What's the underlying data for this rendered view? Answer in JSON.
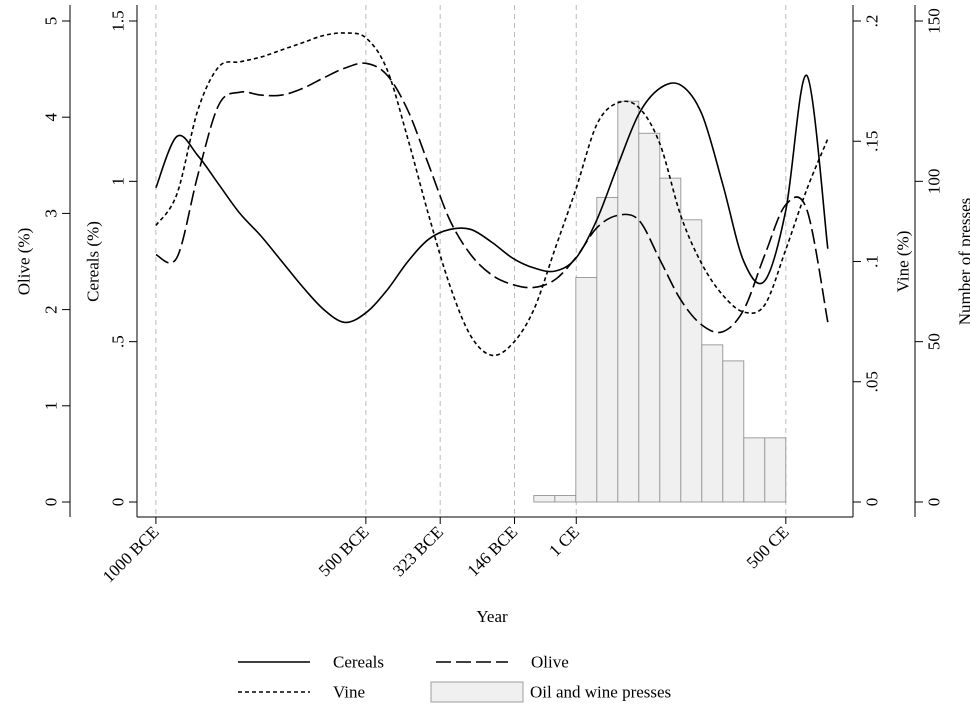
{
  "chart_data": {
    "type": "line",
    "xlabel": "Year",
    "xlim": [
      -1045,
      660
    ],
    "xticks": [
      {
        "value": -1000,
        "label": "1000 BCE"
      },
      {
        "value": -500,
        "label": "500 BCE"
      },
      {
        "value": -323,
        "label": "323 BCE"
      },
      {
        "value": -146,
        "label": "146 BCE"
      },
      {
        "value": 1,
        "label": "1 CE"
      },
      {
        "value": 500,
        "label": "500 CE"
      }
    ],
    "ylabel": "Olive (%)",
    "ylim": [
      0,
      5
    ],
    "yticks": [
      0,
      1,
      2,
      3,
      4,
      5
    ],
    "y2label": "Cereals (%)",
    "y2lim": [
      0,
      1.5
    ],
    "y2ticks": [
      0,
      {
        "value": 0.5,
        "label": ".5"
      },
      1,
      1.5
    ],
    "y3label": "Vine (%)",
    "y3lim": [
      0,
      0.2
    ],
    "y3ticks": [
      0,
      {
        "value": 0.05,
        "label": ".05"
      },
      {
        "value": 0.1,
        "label": ".1"
      },
      {
        "value": 0.15,
        "label": ".15"
      },
      {
        "value": 0.2,
        "label": ".2"
      }
    ],
    "y4label": "Number of presses",
    "y4lim": [
      0,
      150
    ],
    "y4ticks": [
      0,
      50,
      100,
      150
    ],
    "grid": true,
    "x": [
      -1000,
      -950,
      -900,
      -850,
      -800,
      -750,
      -700,
      -650,
      -600,
      -550,
      -500,
      -450,
      -400,
      -350,
      -300,
      -250,
      -200,
      -150,
      -100,
      -50,
      0,
      50,
      100,
      150,
      200,
      250,
      300,
      350,
      400,
      450,
      500,
      550,
      600
    ],
    "series": [
      {
        "name": "Cereals",
        "axis": "y2",
        "color": "#000000",
        "style": "solid",
        "values": [
          0.98,
          1.14,
          1.08,
          0.99,
          0.9,
          0.83,
          0.75,
          0.67,
          0.6,
          0.56,
          0.59,
          0.66,
          0.75,
          0.82,
          0.85,
          0.85,
          0.81,
          0.76,
          0.73,
          0.72,
          0.76,
          0.88,
          1.05,
          1.21,
          1.29,
          1.3,
          1.21,
          0.99,
          0.75,
          0.69,
          0.91,
          1.33,
          0.79
        ]
      },
      {
        "name": "Vine",
        "axis": "y3",
        "color": "#000000",
        "style": "short-dash",
        "values": [
          0.115,
          0.128,
          0.163,
          0.181,
          0.183,
          0.185,
          0.188,
          0.191,
          0.194,
          0.195,
          0.193,
          0.18,
          0.151,
          0.119,
          0.09,
          0.069,
          0.061,
          0.066,
          0.08,
          0.105,
          0.13,
          0.157,
          0.166,
          0.164,
          0.149,
          0.119,
          0.099,
          0.086,
          0.079,
          0.082,
          0.105,
          0.13,
          0.151
        ]
      },
      {
        "name": "Olive",
        "axis": "y",
        "color": "#000000",
        "style": "long-dash",
        "values": [
          2.57,
          2.54,
          3.4,
          4.13,
          4.26,
          4.23,
          4.23,
          4.3,
          4.41,
          4.51,
          4.56,
          4.44,
          4.07,
          3.5,
          2.93,
          2.57,
          2.36,
          2.26,
          2.23,
          2.31,
          2.54,
          2.85,
          2.98,
          2.93,
          2.52,
          2.1,
          1.84,
          1.77,
          2.0,
          2.57,
          3.09,
          3.04,
          1.87
        ]
      },
      {
        "name": "Oil and wine presses",
        "type": "histogram",
        "axis": "y4",
        "color": "#f0f0f0",
        "bins": [
          -100,
          -50,
          0,
          50,
          100,
          150,
          200,
          250,
          300,
          350,
          400,
          450,
          500
        ],
        "values": [
          2,
          2,
          70,
          95,
          125,
          115,
          101,
          88,
          49,
          44,
          20,
          20
        ]
      }
    ]
  }
}
